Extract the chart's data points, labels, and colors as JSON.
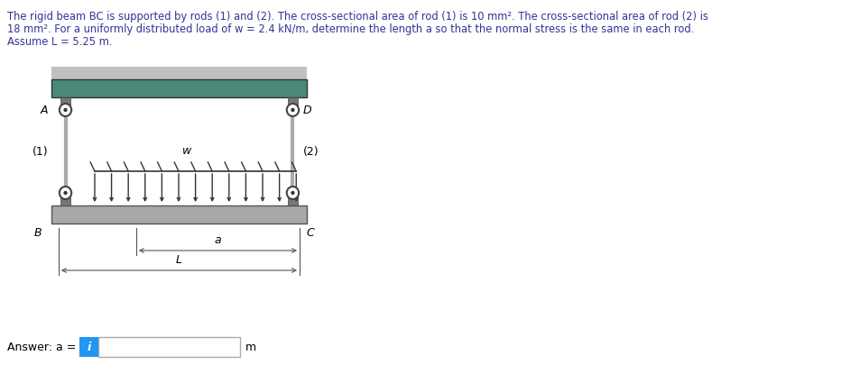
{
  "title_text_line1": "The rigid beam BC is supported by rods (1) and (2). The cross-sectional area of rod (1) is 10 mm². The cross-sectional area of rod (2) is",
  "title_text_line2": "18 mm². For a uniformly distributed load of w = 2.4 kN/m, determine the length a so that the normal stress is the same in each rod.",
  "title_text_line3": "Assume L = 5.25 m.",
  "bg_color": "#ffffff",
  "ceiling_color": "#4a8a78",
  "ceiling_top_color": "#b0b0b0",
  "beam_color": "#a8a8a8",
  "rod_color": "#999999",
  "bracket_color": "#888888",
  "pin_color": "#ffffff",
  "pin_edge_color": "#444444",
  "arrow_color": "#333333",
  "dim_color": "#555555",
  "label_color": "#000000",
  "answer_box_color": "#2196F3",
  "answer_label": "Answer: a = ",
  "answer_unit": "m",
  "fig_width": 9.54,
  "fig_height": 4.15,
  "title_color": "#333399"
}
